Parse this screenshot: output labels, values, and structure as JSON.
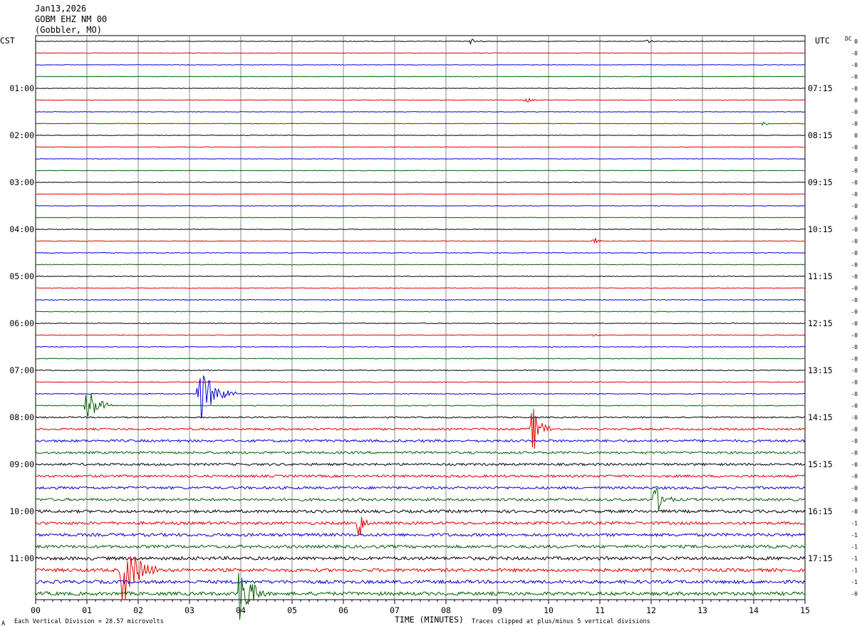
{
  "header": {
    "date": "Jan13,2026",
    "station": "GOBM EHZ NM 00",
    "location": "(Gobbler, MO)"
  },
  "left_axis_title": "CST",
  "right_axis_title": "UTC",
  "dc_label": "DC",
  "footer": {
    "left_mark": "A",
    "scale_text": "Each Vertical Division =   28.57 microvolts",
    "clip_text": "Traces clipped at plus/minus 5 vertical divisions",
    "x_axis_title": "TIME (MINUTES)"
  },
  "chart_data": {
    "type": "line",
    "title": "",
    "xlabel": "TIME (MINUTES)",
    "xlim": [
      0,
      15
    ],
    "x_ticks": [
      "00",
      "01",
      "02",
      "03",
      "04",
      "05",
      "06",
      "07",
      "08",
      "09",
      "10",
      "11",
      "12",
      "13",
      "14",
      "15"
    ],
    "row_colors": [
      "#000000",
      "#e00000",
      "#0000d0",
      "#006000"
    ],
    "left_labels": [
      "01:00",
      "02:00",
      "03:00",
      "04:00",
      "05:00",
      "06:00",
      "07:00",
      "08:00",
      "09:00",
      "10:00",
      "11:00"
    ],
    "right_labels": [
      "07:15",
      "08:15",
      "09:15",
      "10:15",
      "11:15",
      "12:15",
      "13:15",
      "14:15",
      "15:15",
      "16:15",
      "17:15"
    ],
    "dc_offsets": [
      "0",
      "-0",
      "-0",
      "-0",
      "-0",
      "0",
      "-0",
      "-0",
      "0",
      "-0",
      "0",
      "-0",
      "-0",
      "-0",
      "-0",
      "-0",
      "-0",
      "-0",
      "-0",
      "-0",
      "-0",
      "-0",
      "-0",
      "-0",
      "-0",
      "-0",
      "-0",
      "-0",
      "-0",
      "-0",
      "-0",
      "-0",
      "-0",
      "-0",
      "-0",
      "-0",
      "-0",
      "-0",
      "-0",
      "-0",
      "-0",
      "-1",
      "-1",
      "-1",
      "-1",
      "-1",
      "-1",
      "-0"
    ],
    "trace_noise": [
      0.4,
      0.4,
      0.4,
      0.4,
      0.4,
      0.4,
      0.4,
      0.4,
      0.4,
      0.4,
      0.4,
      0.4,
      0.4,
      0.4,
      0.4,
      0.4,
      0.5,
      0.5,
      0.5,
      0.5,
      0.5,
      0.5,
      0.5,
      0.5,
      0.5,
      0.5,
      0.5,
      0.5,
      0.6,
      0.6,
      0.6,
      0.6,
      0.9,
      1.4,
      1.7,
      1.6,
      1.6,
      1.7,
      1.8,
      1.8,
      2.0,
      2.0,
      2.1,
      2.1,
      2.3,
      2.3,
      2.3,
      2.4
    ],
    "events": [
      {
        "row": 0,
        "minute": 8.5,
        "amplitude": 4,
        "duration": 0.3
      },
      {
        "row": 0,
        "minute": 11.9,
        "amplitude": 4,
        "duration": 0.2
      },
      {
        "row": 5,
        "minute": 9.6,
        "amplitude": 3,
        "duration": 0.2
      },
      {
        "row": 7,
        "minute": 14.2,
        "amplitude": 3,
        "duration": 0.2
      },
      {
        "row": 17,
        "minute": 10.9,
        "amplitude": 5,
        "duration": 0.15
      },
      {
        "row": 25,
        "minute": 10.9,
        "amplitude": 4,
        "duration": 0.15
      },
      {
        "row": 30,
        "minute": 3.2,
        "amplitude": 40,
        "duration": 0.7
      },
      {
        "row": 31,
        "minute": 1.0,
        "amplitude": 32,
        "duration": 0.5
      },
      {
        "row": 33,
        "minute": 9.7,
        "amplitude": 32,
        "duration": 0.4
      },
      {
        "row": 39,
        "minute": 12.1,
        "amplitude": 18,
        "duration": 0.4
      },
      {
        "row": 41,
        "minute": 6.3,
        "amplitude": 28,
        "duration": 0.2
      },
      {
        "row": 45,
        "minute": 1.7,
        "amplitude": 48,
        "duration": 0.7
      },
      {
        "row": 47,
        "minute": 4.0,
        "amplitude": 44,
        "duration": 0.5
      }
    ]
  }
}
